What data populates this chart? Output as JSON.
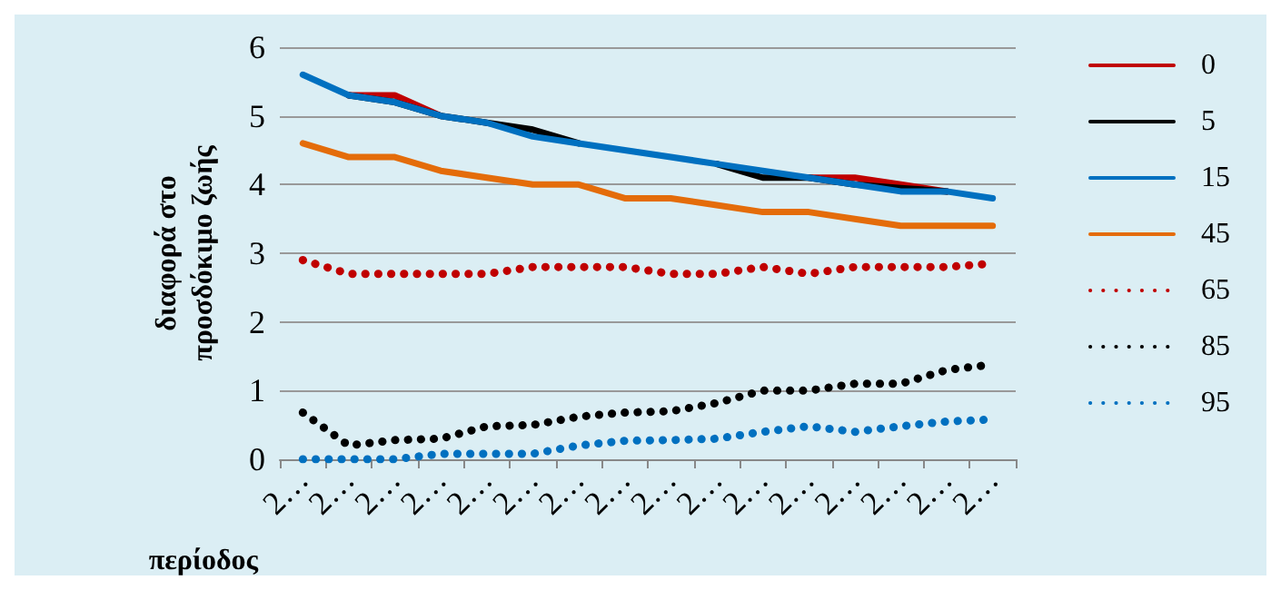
{
  "chart_data": {
    "type": "line",
    "xlabel": "περίοδος",
    "ylabel": "διαφορά στο\nπροσδόκιμο ζωής",
    "categories": [
      "2…",
      "2…",
      "2…",
      "2…",
      "2…",
      "2…",
      "2…",
      "2…",
      "2…",
      "2…",
      "2…",
      "2…",
      "2…",
      "2…",
      "2…",
      "2…"
    ],
    "ylim": [
      0,
      6
    ],
    "yticks": [
      0,
      1,
      2,
      3,
      4,
      5,
      6
    ],
    "grid": "y",
    "legend": "right",
    "marker": "none",
    "series": [
      {
        "name": "0",
        "color": "#c00000",
        "line_style": "solid",
        "values": [
          null,
          5.3,
          5.3,
          5.0,
          null,
          null,
          null,
          null,
          null,
          null,
          null,
          4.1,
          4.1,
          4.0,
          3.9,
          null
        ]
      },
      {
        "name": "5",
        "color": "#000000",
        "line_style": "solid",
        "values": [
          null,
          5.3,
          5.2,
          5.0,
          4.9,
          4.8,
          4.6,
          null,
          null,
          4.3,
          4.1,
          4.1,
          4.0,
          3.95,
          3.9,
          null
        ]
      },
      {
        "name": "15",
        "color": "#0070c0",
        "line_style": "solid",
        "values": [
          5.6,
          5.3,
          5.2,
          5.0,
          4.9,
          4.7,
          4.6,
          4.5,
          4.4,
          4.3,
          4.2,
          4.1,
          4.0,
          3.9,
          3.9,
          3.8
        ]
      },
      {
        "name": "45",
        "color": "#e46c0a",
        "line_style": "solid",
        "values": [
          4.6,
          4.4,
          4.4,
          4.2,
          4.1,
          4.0,
          4.0,
          3.8,
          3.8,
          3.7,
          3.6,
          3.6,
          3.5,
          3.4,
          3.4,
          3.4
        ]
      },
      {
        "name": "65",
        "color": "#c00000",
        "line_style": "dotted",
        "values": [
          2.9,
          2.7,
          2.7,
          2.7,
          2.7,
          2.8,
          2.8,
          2.8,
          2.7,
          2.7,
          2.8,
          2.7,
          2.8,
          2.8,
          2.8,
          2.85
        ]
      },
      {
        "name": "85",
        "color": "#000000",
        "line_style": "dotted",
        "values": [
          0.68,
          0.2,
          0.28,
          0.3,
          0.48,
          0.5,
          0.62,
          0.68,
          0.7,
          0.82,
          1.0,
          1.0,
          1.1,
          1.1,
          1.3,
          1.38
        ]
      },
      {
        "name": "95",
        "color": "#0070c0",
        "line_style": "dotted",
        "values": [
          0,
          0,
          0,
          0.08,
          0.08,
          0.08,
          0.2,
          0.27,
          0.28,
          0.3,
          0.4,
          0.48,
          0.4,
          0.48,
          0.55,
          0.58
        ]
      }
    ]
  }
}
